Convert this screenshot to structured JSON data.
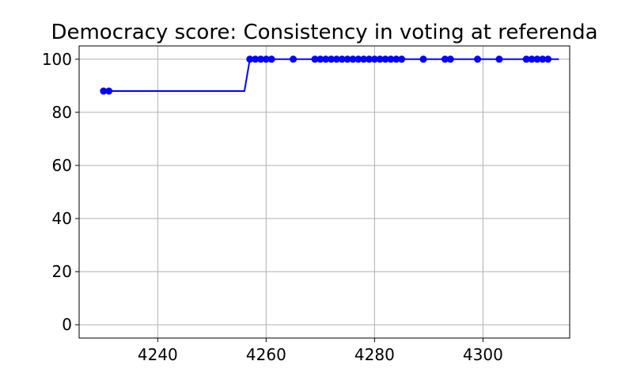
{
  "chart_data": {
    "type": "line",
    "title": "Democracy score: Consistency in voting at referenda",
    "xlabel": "",
    "ylabel": "",
    "xlim": [
      4225.5,
      4316
    ],
    "ylim": [
      -5,
      105
    ],
    "xticks": [
      4240,
      4260,
      4280,
      4300
    ],
    "yticks": [
      0,
      20,
      40,
      60,
      80,
      100
    ],
    "grid": true,
    "series_color": "#0000ff",
    "line": {
      "x": [
        4230,
        4231,
        4256,
        4257,
        4258,
        4259,
        4260,
        4261,
        4265,
        4269,
        4270,
        4271,
        4272,
        4273,
        4274,
        4275,
        4276,
        4277,
        4278,
        4279,
        4280,
        4281,
        4282,
        4283,
        4284,
        4285,
        4289,
        4293,
        4294,
        4299,
        4303,
        4308,
        4309,
        4310,
        4311,
        4312,
        4314
      ],
      "y": [
        88,
        88,
        88,
        100,
        100,
        100,
        100,
        100,
        100,
        100,
        100,
        100,
        100,
        100,
        100,
        100,
        100,
        100,
        100,
        100,
        100,
        100,
        100,
        100,
        100,
        100,
        100,
        100,
        100,
        100,
        100,
        100,
        100,
        100,
        100,
        100,
        100
      ]
    },
    "points": {
      "x": [
        4230,
        4231,
        4257,
        4258,
        4259,
        4260,
        4261,
        4265,
        4269,
        4270,
        4271,
        4272,
        4273,
        4274,
        4275,
        4276,
        4277,
        4278,
        4279,
        4280,
        4281,
        4282,
        4283,
        4284,
        4285,
        4289,
        4293,
        4294,
        4299,
        4303,
        4308,
        4309,
        4310,
        4311,
        4312
      ],
      "y": [
        88,
        88,
        100,
        100,
        100,
        100,
        100,
        100,
        100,
        100,
        100,
        100,
        100,
        100,
        100,
        100,
        100,
        100,
        100,
        100,
        100,
        100,
        100,
        100,
        100,
        100,
        100,
        100,
        100,
        100,
        100,
        100,
        100,
        100,
        100
      ]
    }
  }
}
